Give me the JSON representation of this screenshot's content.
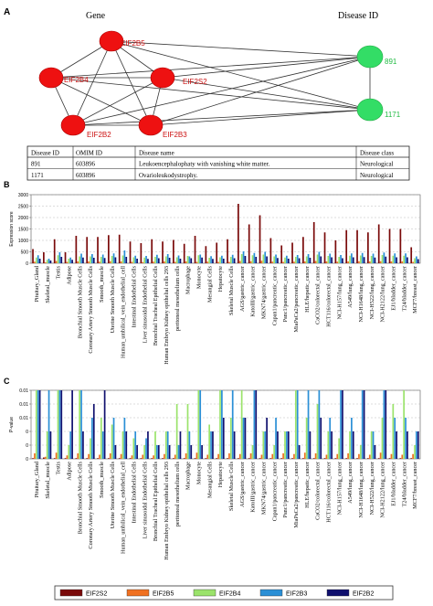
{
  "figure": {
    "panel_a_letter": "A",
    "panel_b_letter": "B",
    "panel_c_letter": "C"
  },
  "network": {
    "gene_header": "Gene",
    "disease_header": "Disease ID",
    "genes": [
      "EIF2B5",
      "EIF2B4",
      "EIF2S2",
      "EIF2B2",
      "EIF2B3"
    ],
    "diseases": [
      "891",
      "1171"
    ],
    "gene_color": "#ee1111",
    "disease_color": "#33dd66"
  },
  "disease_table": {
    "headers": [
      "Disease ID",
      "OMIM ID",
      "Disease name",
      "Disease class"
    ],
    "rows": [
      [
        "891",
        "603896",
        "Leukoencephalophaty with vanishing white matter.",
        "Neurological"
      ],
      [
        "1171",
        "603896",
        "Ovarioleukodystrophy.",
        "Neurological"
      ]
    ]
  },
  "chart_data": [
    {
      "type": "bar",
      "title": "",
      "xlabel": "",
      "ylabel": "Expression score",
      "ylim": [
        0,
        3000
      ],
      "yticks": [
        "0",
        "500",
        "1000",
        "1500",
        "2000",
        "2500",
        "3000"
      ],
      "grid": true,
      "categories": [
        "Pituitary_Gland",
        "Skeletal_muscle",
        "Testis",
        "Adipose",
        "Bronchial Smooth Muscle Cells",
        "Coronary Artery Smooth Muscle Cells",
        "Smooth_muscle",
        "Uterine Smooth Muscle Cells",
        "Human_umbilical_vein_endothelial_cell",
        "Intestinal Endothelial Cells",
        "Liver sinusoidal Endothelial Cells",
        "Bronchial Tracheal Epithelial Cells",
        "Human Embryo Kidney epithelial cells 293",
        "peritoneal mesothelium cells",
        "Macrophage",
        "Monocyte",
        "Mesangial Cells",
        "Hepatocyte",
        "Skeletal Muscle Cells",
        "AGS/gastric_cancer",
        "KatoIII/gastric_cancer",
        "MKN74/gastric_cancer",
        "Capan1/pancreatic_cancer",
        "Panc1/pancreatic_cancer",
        "MiaPaCa2/pancreatic_cancer",
        "HLE/hepatic_cancer",
        "CaCO2/colorectal_cancer",
        "HCT116/colorectal_cancer",
        "NCI-H157/lung_cancer",
        "A549/lung_cancer",
        "NCI-H1648/lung_cancer",
        "NCI-H522/lung_cancer",
        "NCI-H2122/lung_cancer",
        "EJ1/bladder_cancer",
        "T24/bladder_cancer",
        "MCF7/breast_cancer"
      ],
      "series": [
        {
          "name": "EIF2S2",
          "values": [
            620,
            480,
            1050,
            480,
            1200,
            1150,
            1150,
            1230,
            1250,
            950,
            880,
            1050,
            950,
            1020,
            850,
            1200,
            750,
            900,
            1050,
            2600,
            1700,
            2100,
            1100,
            780,
            900,
            1150,
            1800,
            1350,
            1000,
            1450,
            1450,
            1350,
            1700,
            1500,
            1500,
            700
          ]
        },
        {
          "name": "EIF2B5",
          "values": [
            70,
            40,
            100,
            60,
            80,
            80,
            70,
            90,
            80,
            60,
            50,
            70,
            80,
            60,
            80,
            60,
            70,
            60,
            60,
            100,
            90,
            110,
            70,
            60,
            70,
            80,
            100,
            80,
            70,
            80,
            90,
            80,
            90,
            80,
            80,
            60
          ]
        },
        {
          "name": "EIF2B4",
          "values": [
            250,
            150,
            350,
            200,
            300,
            300,
            280,
            320,
            340,
            260,
            250,
            280,
            300,
            260,
            320,
            350,
            240,
            260,
            280,
            400,
            350,
            380,
            300,
            250,
            280,
            300,
            380,
            320,
            280,
            330,
            340,
            320,
            360,
            330,
            330,
            220
          ]
        },
        {
          "name": "EIF2B3",
          "values": [
            350,
            200,
            480,
            250,
            420,
            400,
            380,
            430,
            560,
            330,
            320,
            370,
            400,
            340,
            300,
            380,
            310,
            330,
            370,
            520,
            450,
            500,
            380,
            330,
            360,
            400,
            500,
            420,
            360,
            430,
            450,
            420,
            470,
            430,
            430,
            300
          ]
        },
        {
          "name": "EIF2B2",
          "values": [
            200,
            120,
            280,
            150,
            250,
            240,
            230,
            260,
            280,
            200,
            190,
            220,
            240,
            200,
            220,
            250,
            190,
            200,
            220,
            320,
            280,
            300,
            230,
            200,
            220,
            240,
            300,
            260,
            220,
            260,
            270,
            250,
            290,
            260,
            260,
            180
          ]
        }
      ]
    },
    {
      "type": "bar",
      "title": "",
      "xlabel": "",
      "ylabel": "P-value",
      "ylim": [
        0,
        0.01
      ],
      "yticks": [
        "0",
        "0",
        "0",
        "0.01",
        "0.01",
        "0.01"
      ],
      "grid": true,
      "categories": [
        "Pituitary_Gland",
        "Skeletal_muscle",
        "Testis",
        "Adipose",
        "Bronchial Smooth Muscle Cells",
        "Coronary Artery Smooth Muscle Cells",
        "Smooth_muscle",
        "Uterine Smooth Muscle Cells",
        "Human_umbilical_vein_endothelial_cell",
        "Intestinal Endothelial Cells",
        "Liver sinusoidal Endothelial Cells",
        "Bronchial Tracheal Epithelial Cells",
        "Human Embryo Kidney epithelial cells 293",
        "peritoneal mesothelium cells",
        "Macrophage",
        "Monocyte",
        "Mesangial Cells",
        "Hepatocyte",
        "Skeletal Muscle Cells",
        "AGS/gastric_cancer",
        "KatoIII/gastric_cancer",
        "MKN74/gastric_cancer",
        "Capan1/pancreatic_cancer",
        "Panc1/pancreatic_cancer",
        "MiaPaCa2/pancreatic_cancer",
        "HLE/hepatic_cancer",
        "CaCO2/colorectal_cancer",
        "HCT116/colorectal_cancer",
        "NCI-H157/lung_cancer",
        "A549/lung_cancer",
        "NCI-H1648/lung_cancer",
        "NCI-H522/lung_cancer",
        "NCI-H2122/lung_cancer",
        "EJ1/bladder_cancer",
        "T24/bladder_cancer",
        "MCF7/breast_cancer"
      ],
      "series": [
        {
          "name": "EIF2S2",
          "values": [
            0.0001,
            0.0002,
            0.0001,
            0.0001,
            0.0001,
            0.0001,
            0.0001,
            0.0001,
            0.0001,
            0.0001,
            0.0001,
            0.0001,
            0.0001,
            0.0001,
            0.0001,
            0.0001,
            0.0001,
            0.0001,
            0.0001,
            0.0001,
            0.0001,
            0.0001,
            0.0001,
            0.0001,
            0.0001,
            0.0001,
            0.0001,
            0.0001,
            0.0001,
            0.0001,
            0.0001,
            0.0001,
            0.0001,
            0.0001,
            0.0001,
            0.0001
          ]
        },
        {
          "name": "EIF2B5",
          "values": [
            0.0008,
            0.0003,
            0.0009,
            0.0005,
            0.0008,
            0.0007,
            0.0006,
            0.0008,
            0.0007,
            0.0005,
            0.0006,
            0.0005,
            0.0007,
            0.0006,
            0.0008,
            0.0009,
            0.0006,
            0.0007,
            0.0008,
            0.0007,
            0.0008,
            0.0006,
            0.0007,
            0.0008,
            0.0007,
            0.0009,
            0.0008,
            0.0006,
            0.0007,
            0.0008,
            0.0007,
            0.0006,
            0.0009,
            0.0007,
            0.0006,
            0.0007
          ]
        },
        {
          "name": "EIF2B4",
          "values": [
            0.01,
            0.004,
            0.01,
            0.002,
            0.01,
            0.003,
            0.006,
            0.005,
            0.004,
            0.003,
            0.002,
            0.004,
            0.004,
            0.008,
            0.008,
            0.01,
            0.005,
            0.01,
            0.006,
            0.01,
            0.002,
            0.004,
            0.002,
            0.004,
            0.01,
            0.006,
            0.008,
            0.004,
            0.003,
            0.004,
            0.002,
            0.004,
            0.006,
            0.008,
            0.01,
            0.002
          ]
        },
        {
          "name": "EIF2B3",
          "values": [
            0.01,
            0.01,
            0.01,
            0.004,
            0.01,
            0.006,
            0.004,
            0.006,
            0.006,
            0.004,
            0.003,
            0.002,
            0.004,
            0.002,
            0.004,
            0.01,
            0.004,
            0.01,
            0.01,
            0.006,
            0.01,
            0.004,
            0.006,
            0.004,
            0.01,
            0.01,
            0.01,
            0.006,
            0.01,
            0.006,
            0.01,
            0.004,
            0.01,
            0.006,
            0.006,
            0.004
          ]
        },
        {
          "name": "EIF2B2",
          "values": [
            0.01,
            0.004,
            0.01,
            0.01,
            0.004,
            0.008,
            0.01,
            0.002,
            0.004,
            0.002,
            0.004,
            0.002,
            0.002,
            0.004,
            0.002,
            0.002,
            0.004,
            0.006,
            0.004,
            0.006,
            0.01,
            0.006,
            0.004,
            0.004,
            0.002,
            0.004,
            0.006,
            0.004,
            0.01,
            0.004,
            0.01,
            0.002,
            0.01,
            0.004,
            0.004,
            0.004
          ]
        }
      ]
    }
  ],
  "legend": {
    "entries": [
      {
        "label": "EIF2S2",
        "color": "#7a0a0a"
      },
      {
        "label": "EIF2B5",
        "color": "#f07020"
      },
      {
        "label": "EIF2B4",
        "color": "#9be36b"
      },
      {
        "label": "EIF2B3",
        "color": "#2a8fd6"
      },
      {
        "label": "EIF2B2",
        "color": "#10106e"
      }
    ]
  }
}
